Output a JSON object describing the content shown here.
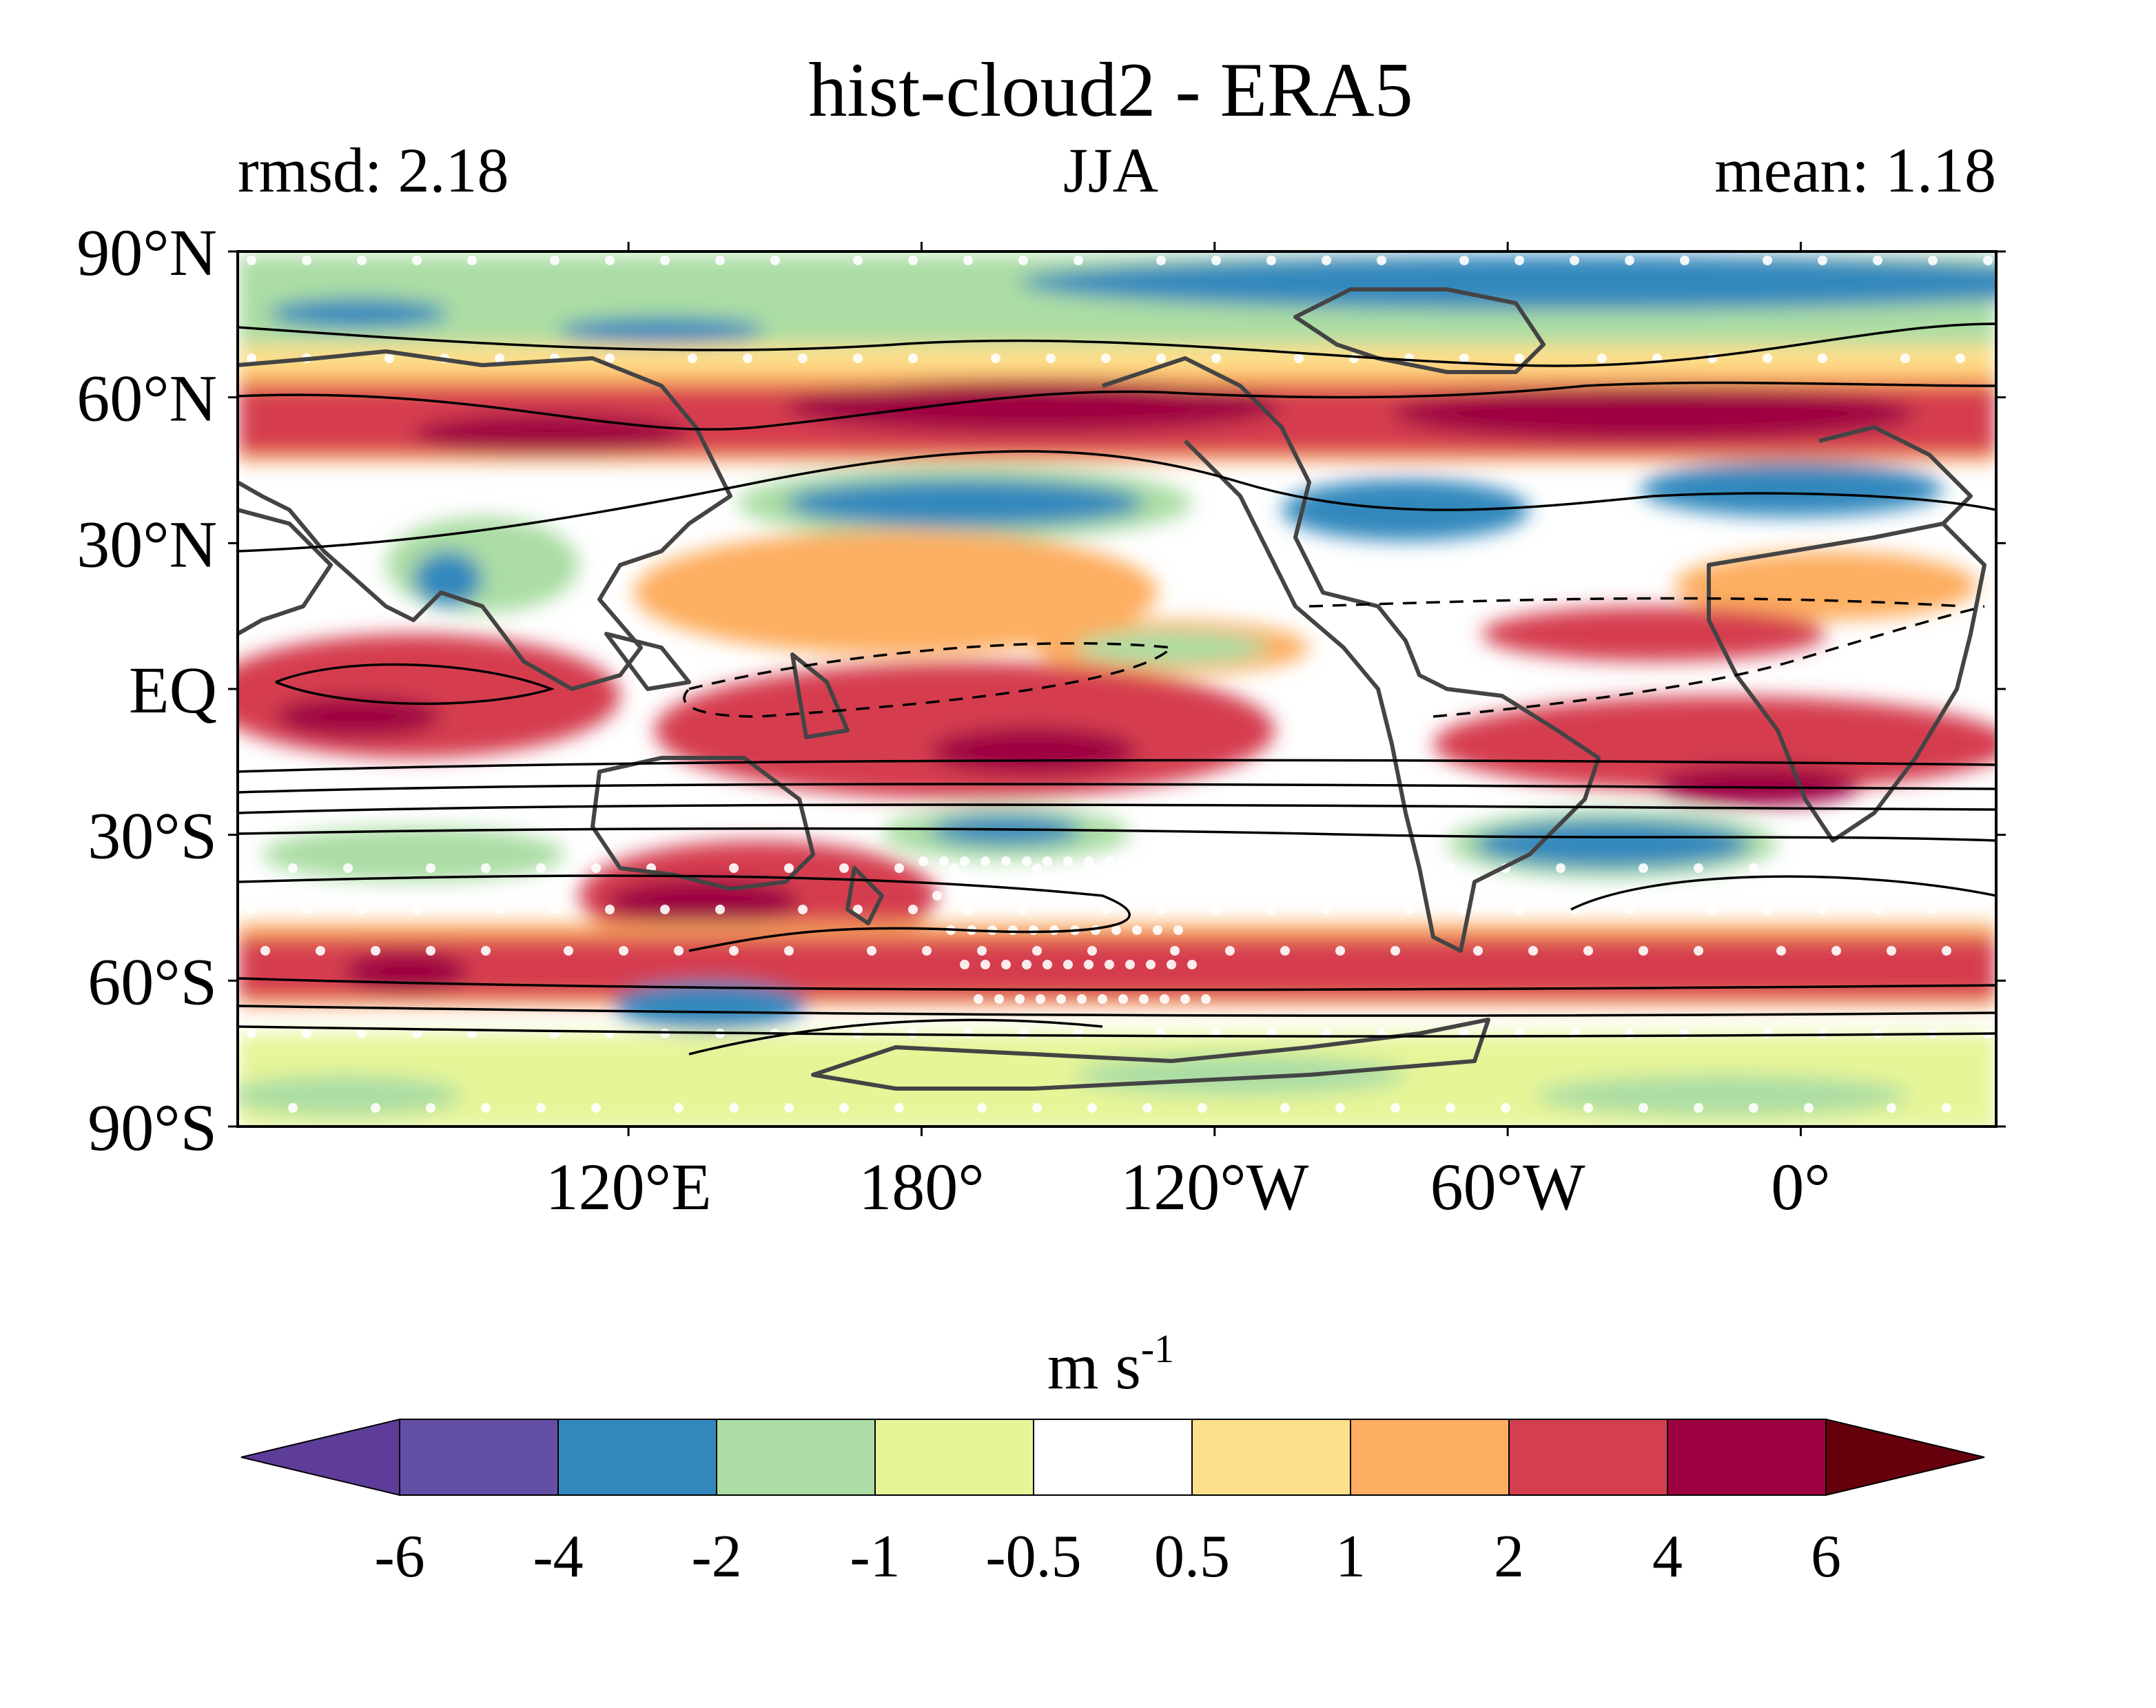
{
  "title": "hist-cloud2 - ERA5",
  "left_label": "rmsd: 2.18",
  "center_label": "JJA",
  "right_label": "mean: 1.18",
  "lat_ticks": [
    "90°N",
    "60°N",
    "30°N",
    "EQ",
    "30°S",
    "60°S",
    "90°S"
  ],
  "lat_values": [
    90,
    60,
    30,
    0,
    -30,
    -60,
    -90
  ],
  "lon_ticks": [
    "120°E",
    "180°",
    "120°W",
    "60°W",
    "0°"
  ],
  "lon_values": [
    120,
    180,
    240,
    300,
    360
  ],
  "lon_range": [
    40,
    400
  ],
  "lat_range": [
    -90,
    90
  ],
  "colorbar": {
    "unit": "m s",
    "unit_superscript": "-1",
    "levels": [
      "-6",
      "-4",
      "-2",
      "-1",
      "-0.5",
      "0.5",
      "1",
      "2",
      "4",
      "6"
    ],
    "colors": [
      "#5e3c99",
      "#6350a6",
      "#3288bd",
      "#abdda4",
      "#e6f598",
      "#ffffff",
      "#fee08b",
      "#fdae61",
      "#d53e4f",
      "#9e0142",
      "#67000d"
    ],
    "extend": "both"
  },
  "colors": {
    "land_outline": "#444444",
    "contour": "#000000",
    "stipple": "#ffffff"
  }
}
